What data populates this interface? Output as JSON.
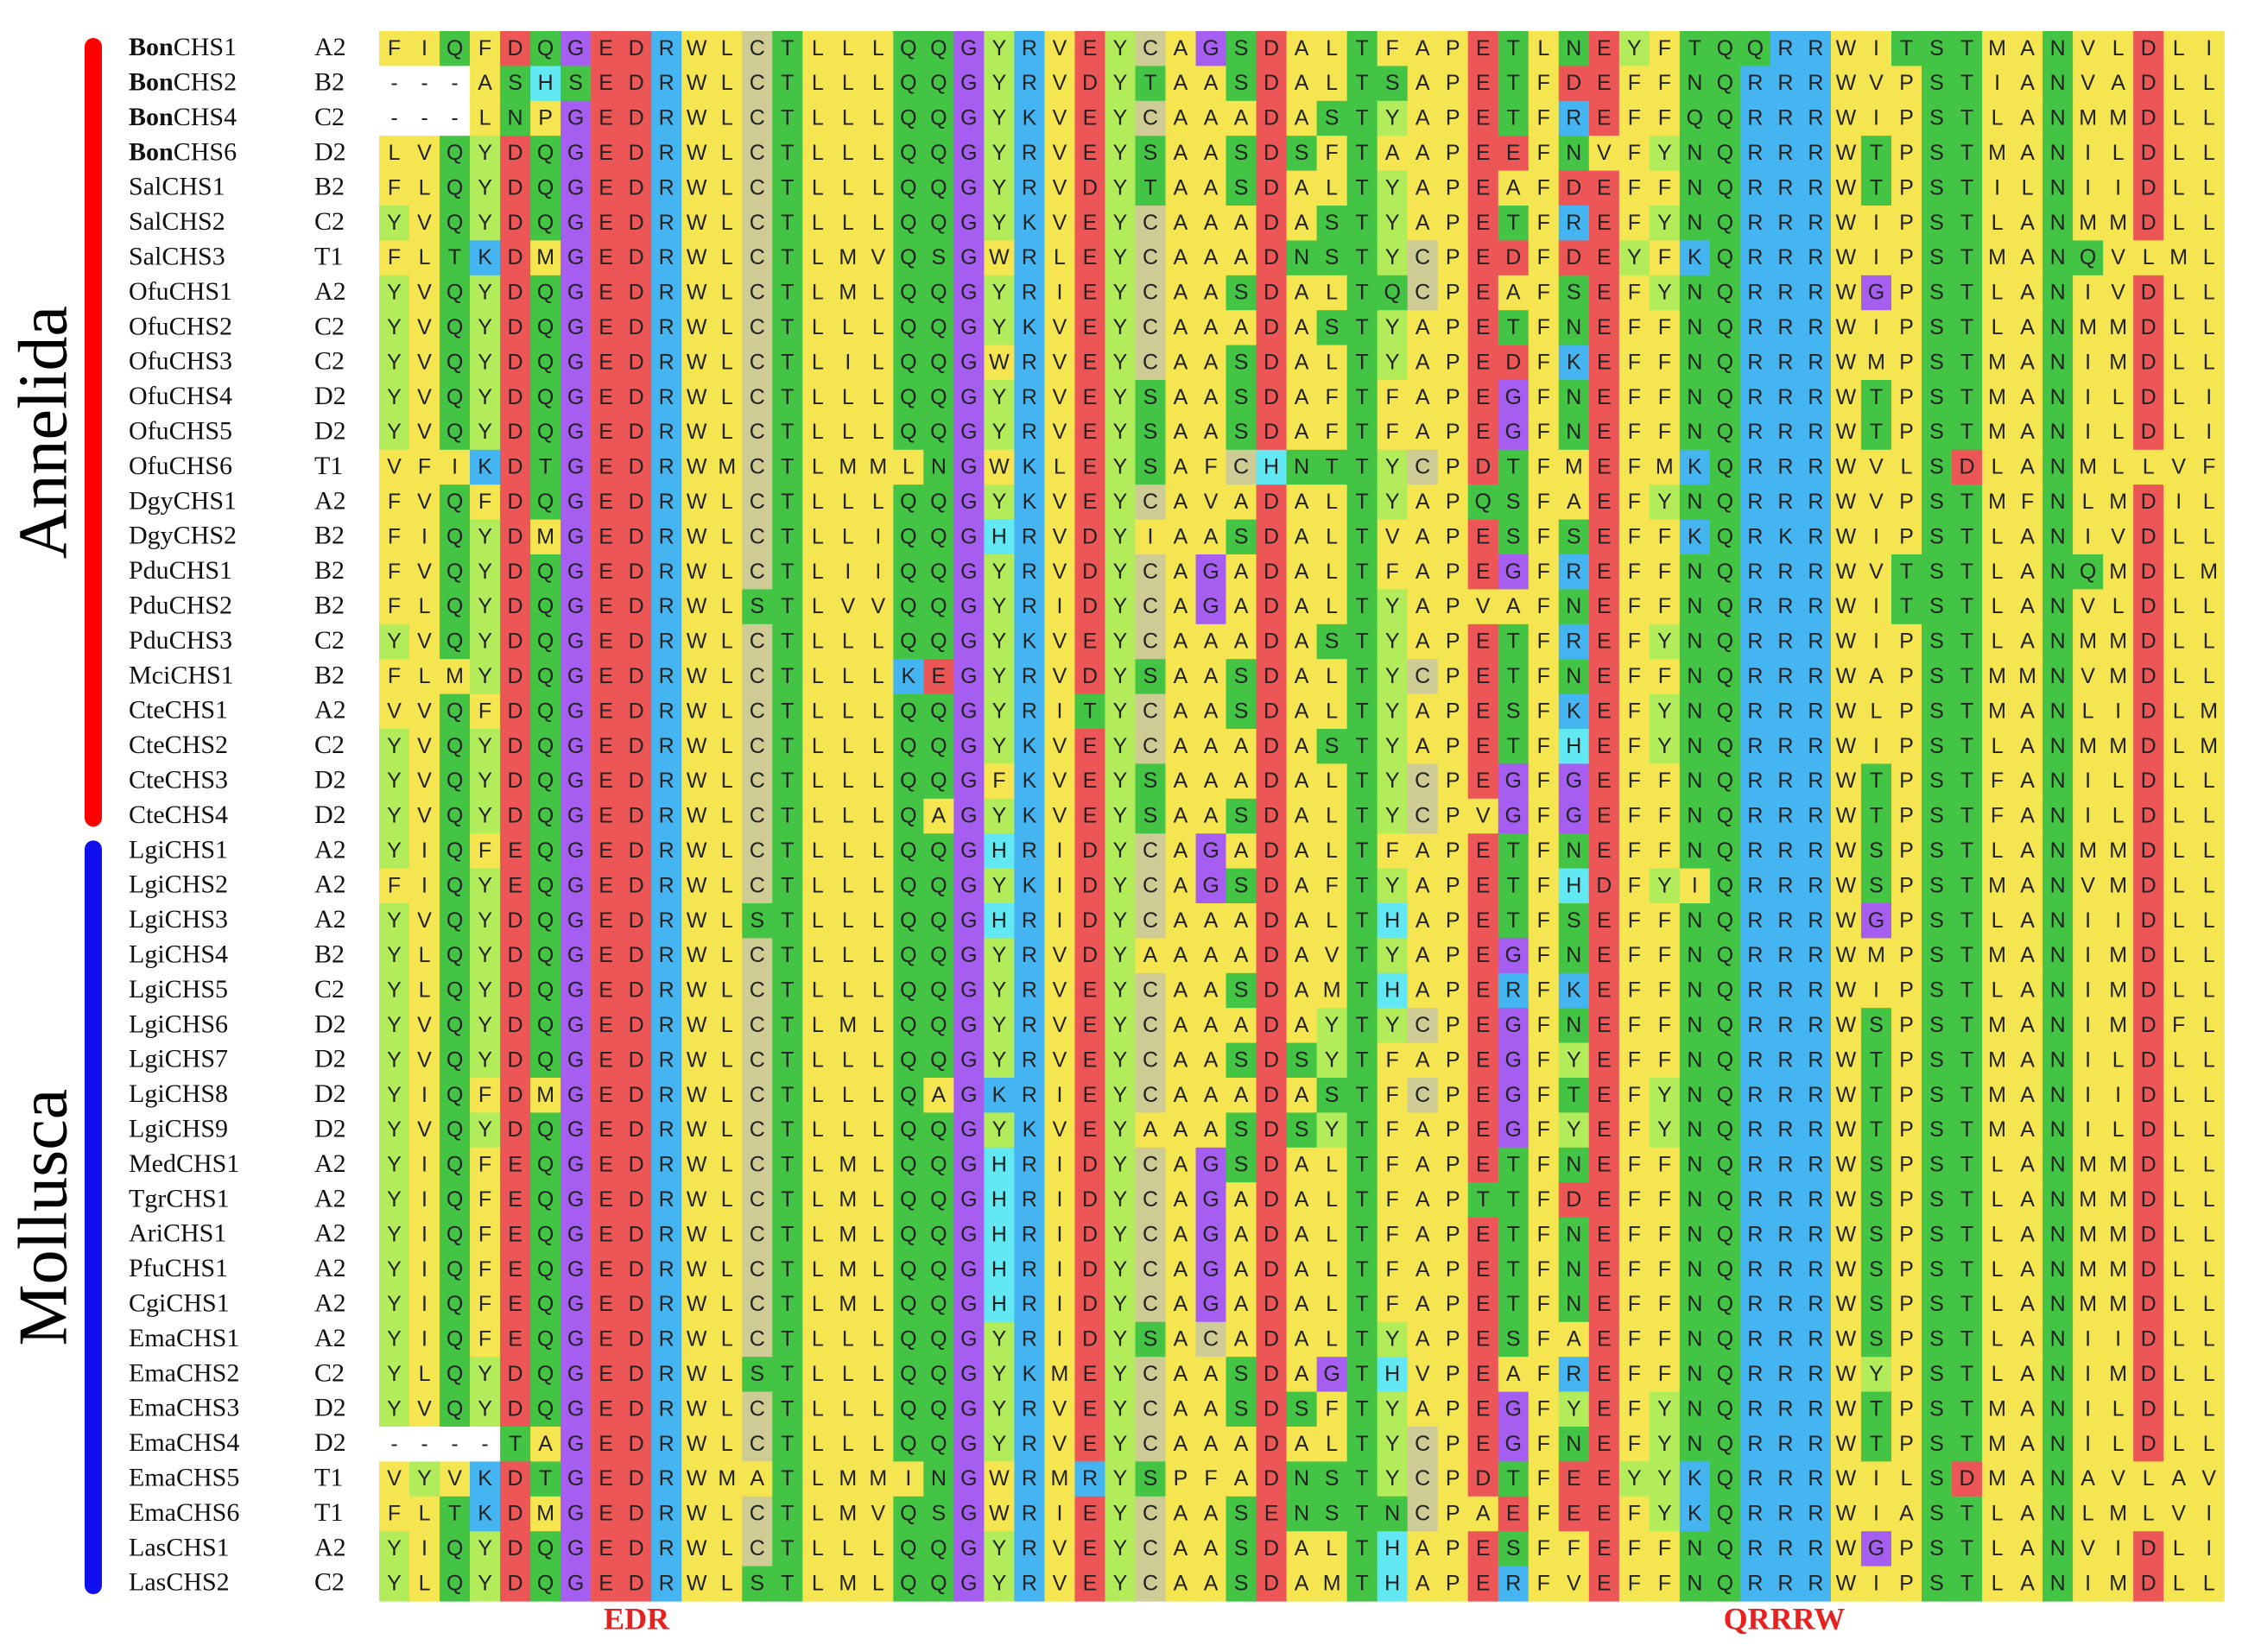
{
  "alignment": {
    "highlight_species": "Bon",
    "residue_colors": {
      "A": "#f5e550",
      "V": "#f5e550",
      "L": "#f5e550",
      "I": "#f5e550",
      "M": "#f5e550",
      "F": "#f5e550",
      "W": "#f5e550",
      "P": "#f5e550",
      "C": "#cfcb94",
      "Y": "#b2ec5a",
      "G": "#a65ef0",
      "D": "#ec5656",
      "E": "#ec5656",
      "K": "#45b5f2",
      "R": "#45b5f2",
      "N": "#44c444",
      "Q": "#44c444",
      "S": "#44c444",
      "T": "#44c444",
      "H": "#62e8f2",
      "-": "#ffffff"
    },
    "groups": [
      {
        "name": "Annelida",
        "color": "#ff0000",
        "rows": [
          {
            "name": "BonCHS1",
            "code": "A2",
            "sequence": "FIQFDQGEDRWLCTLLLQQGYRVEYCAGSDALTFAPETLNEYFTQQRRWITSTMANVLDLI"
          },
          {
            "name": "BonCHS2",
            "code": "B2",
            "sequence": "---ASHSEDRWLCTLLLQQGYRVDYTAASDALTSAPETFDEFFNQRRRWVPSTIANVADLL"
          },
          {
            "name": "BonCHS4",
            "code": "C2",
            "sequence": "---LNPGEDRWLCTLLLQQGYKVEYCAAADASTYAPETFREFFQQRRRWIPSTLANMMDLL"
          },
          {
            "name": "BonCHS6",
            "code": "D2",
            "sequence": "LVQYDQGEDRWLCTLLLQQGYRVEYSAASDSFTAAPEEFNVFYNQRRRWTPSTMANILDLL"
          },
          {
            "name": "SalCHS1",
            "code": "B2",
            "sequence": "FLQYDQGEDRWLCTLLLQQGYRVDYTAASDALTYAPEAFDEFFNQRRRWTPSTILNIIDLL"
          },
          {
            "name": "SalCHS2",
            "code": "C2",
            "sequence": "YVQYDQGEDRWLCTLLLQQGYKVEYCAAADASTYAPETFREFYNQRRRWIPSTLANMMDLL"
          },
          {
            "name": "SalCHS3",
            "code": "T1",
            "sequence": "FLTKDMGEDRWLCTLMVQSGWRLEYCAAADNSTYCPEDFDEYFKQRRRWIPSTMANQVLML"
          },
          {
            "name": "OfuCHS1",
            "code": "A2",
            "sequence": "YVQYDQGEDRWLCTLMLQQGYRIEYCAASDALTQCPEAFSEFYNQRRRWGPSTLANIVDLL"
          },
          {
            "name": "OfuCHS2",
            "code": "C2",
            "sequence": "YVQYDQGEDRWLCTLLLQQGYKVEYCAAADASTYAPETFNEFFNQRRRWIPSTLANMMDLL"
          },
          {
            "name": "OfuCHS3",
            "code": "C2",
            "sequence": "YVQYDQGEDRWLCTLILQQGWRVEYCAASDALTYAPEDFKEFFNQRRRWMPSTMANIMDLL"
          },
          {
            "name": "OfuCHS4",
            "code": "D2",
            "sequence": "YVQYDQGEDRWLCTLLLQQGYRVEYSAASDAFTFAPEGFNEFFNQRRRWTPSTMANILDLI"
          },
          {
            "name": "OfuCHS5",
            "code": "D2",
            "sequence": "YVQYDQGEDRWLCTLLLQQGYRVEYSAASDAFTFAPEGFNEFFNQRRRWTPSTMANILDLI"
          },
          {
            "name": "OfuCHS6",
            "code": "T1",
            "sequence": "VFIKDTGEDRWMCTLMMLNGWKLEYSAFCHNTTYCPDTFMEFMKQRRRWVLSDLANMLLVF"
          },
          {
            "name": "DgyCHS1",
            "code": "A2",
            "sequence": "FVQFDQGEDRWLCTLLLQQGYKVEYCAVADALTYAPQSFAEFYNQRRRWVPSTMFNLMDIL"
          },
          {
            "name": "DgyCHS2",
            "code": "B2",
            "sequence": "FIQYDMGEDRWLCTLLIQQGHRVDYIAASDALTVAPESFSEFFKQRKRWIPSTLANIVDLL"
          },
          {
            "name": "PduCHS1",
            "code": "B2",
            "sequence": "FVQYDQGEDRWLCTLIIQQGYRVDYCAGADALTFAPEGFREFFNQRRRWVTSTLANQMDLM"
          },
          {
            "name": "PduCHS2",
            "code": "B2",
            "sequence": "FLQYDQGEDRWLSTLVVQQGYRIDYCAGADALTYAPVAFNEFFNQRRRWITSTLANVLDLL"
          },
          {
            "name": "PduCHS3",
            "code": "C2",
            "sequence": "YVQYDQGEDRWLCTLLLQQGYKVEYCAAADASTYAPETFREFYNQRRRWIPSTLANMMDLL"
          },
          {
            "name": "MciCHS1",
            "code": "B2",
            "sequence": "FLMYDQGEDRWLCTLLLKEGYRVDYSAASDALTYCPETFNEFFNQRRRWAPSTMMNVMDLL"
          },
          {
            "name": "CteCHS1",
            "code": "A2",
            "sequence": "VVQFDQGEDRWLCTLLLQQGYRITYCAASDALTYAPESFKEFYNQRRRWLPSTMANLIDLM"
          },
          {
            "name": "CteCHS2",
            "code": "C2",
            "sequence": "YVQYDQGEDRWLCTLLLQQGYKVEYCAAADASTYAPETFHEFYNQRRRWIPSTLANMMDLM"
          },
          {
            "name": "CteCHS3",
            "code": "D2",
            "sequence": "YVQYDQGEDRWLCTLLLQQGFKVEYSAAADALTYCPEGFGEFFNQRRRWTPSTFANILDLL"
          },
          {
            "name": "CteCHS4",
            "code": "D2",
            "sequence": "YVQYDQGEDRWLCTLLLQAGYKVEYSAASDALTYCPVGFGEFFNQRRRWTPSTFANILDLL"
          }
        ]
      },
      {
        "name": "Mollusca",
        "color": "#1010ee",
        "rows": [
          {
            "name": "LgiCHS1",
            "code": "A2",
            "sequence": "YIQFEQGEDRWLCTLLLQQGHRIDYCAGADALTFAPETFNEFFNQRRRWSPSTLANMMDLL"
          },
          {
            "name": "LgiCHS2",
            "code": "A2",
            "sequence": "FIQYEQGEDRWLCTLLLQQGYKIDYCAGSDAFTYAPETFHDFYIQRRRWSPSTMANVMDLL"
          },
          {
            "name": "LgiCHS3",
            "code": "A2",
            "sequence": "YVQYDQGEDRWLSTLLLQQGHRIDYCAAADALTHAPETFSEFFNQRRRWGPSTLANIIDLL"
          },
          {
            "name": "LgiCHS4",
            "code": "B2",
            "sequence": "YLQYDQGEDRWLCTLLLQQGYRVDYAAAADAVTYAPEGFNEFFNQRRRWMPSTMANIMDLL"
          },
          {
            "name": "LgiCHS5",
            "code": "C2",
            "sequence": "YLQYDQGEDRWLCTLLLQQGYRVEYCAASDAMTHAPERFKEFFNQRRRWIPSTLANIMDLL"
          },
          {
            "name": "LgiCHS6",
            "code": "D2",
            "sequence": "YVQYDQGEDRWLCTLMLQQGYRVEYCAAADAYTYCPEGFNEFFNQRRRWSPSTMANIMDFL"
          },
          {
            "name": "LgiCHS7",
            "code": "D2",
            "sequence": "YVQYDQGEDRWLCTLLLQQGYRVEYCAASDSYTFAPEGFYEFFNQRRRWTPSTMANILDLL"
          },
          {
            "name": "LgiCHS8",
            "code": "D2",
            "sequence": "YIQFDMGEDRWLCTLLLQAGKRIEYCAAADASTFCPEGFTEFYNQRRRWTPSTMANIIDLL"
          },
          {
            "name": "LgiCHS9",
            "code": "D2",
            "sequence": "YVQYDQGEDRWLCTLLLQQGYKVEYAAASDSYTFAPEGFYEFYNQRRRWTPSTMANILDLL"
          },
          {
            "name": "MedCHS1",
            "code": "A2",
            "sequence": "YIQFEQGEDRWLCTLMLQQGHRIDYCAGSDALTFAPETFNEFFNQRRRWSPSTLANMMDLL"
          },
          {
            "name": "TgrCHS1",
            "code": "A2",
            "sequence": "YIQFEQGEDRWLCTLMLQQGHRIDYCAGADALTFAPTTFDEFFNQRRRWSPSTLANMMDLL"
          },
          {
            "name": "AriCHS1",
            "code": "A2",
            "sequence": "YIQFEQGEDRWLCTLMLQQGHRIDYCAGADALTFAPETFNEFFNQRRRWSPSTLANMMDLL"
          },
          {
            "name": "PfuCHS1",
            "code": "A2",
            "sequence": "YIQFEQGEDRWLCTLMLQQGHRIDYCAGADALTFAPETFNEFFNQRRRWSPSTLANMMDLL"
          },
          {
            "name": "CgiCHS1",
            "code": "A2",
            "sequence": "YIQFEQGEDRWLCTLMLQQGHRIDYCAGADALTFAPETFNEFFNQRRRWSPSTLANMMDLL"
          },
          {
            "name": "EmaCHS1",
            "code": "A2",
            "sequence": "YIQFEQGEDRWLCTLLLQQGYRIDYSACADALTYAPESFAEFFNQRRRWSPSTLANIIDLL"
          },
          {
            "name": "EmaCHS2",
            "code": "C2",
            "sequence": "YLQYDQGEDRWLSTLLLQQGYKMEYCAASDAGTHVPEAFREFFNQRRRWYPSTLANIMDLL"
          },
          {
            "name": "EmaCHS3",
            "code": "D2",
            "sequence": "YVQYDQGEDRWLCTLLLQQGYRVEYCAASDSFTYAPEGFYEFYNQRRRWTPSTMANILDLL"
          },
          {
            "name": "EmaCHS4",
            "code": "D2",
            "sequence": "----TAGEDRWLCTLLLQQGYRVEYCAAADALTYCPEGFNEFYNQRRRWTPSTMANILDLL"
          },
          {
            "name": "EmaCHS5",
            "code": "T1",
            "sequence": "VYVKDTGEDRWMATLMMINGWRMRYSPFADNSTYCPDTFEEYYKQRRRWILSDMANAVLAV"
          },
          {
            "name": "EmaCHS6",
            "code": "T1",
            "sequence": "FLTKDMGEDRWLCTLMVQSGWRIEYCAASENSTNCPAEFEEFYKQRRRWIASTLANLMLVI"
          },
          {
            "name": "LasCHS1",
            "code": "A2",
            "sequence": "YIQYDQGEDRWLCTLLLQQGYRVEYCAASDALTHAPESFFEFFNQRRRWGPSTLANVIDLI"
          },
          {
            "name": "LasCHS2",
            "code": "C2",
            "sequence": "YLQYDQGEDRWLSTLMLQQGYRVEYCAASDAMTHAPERFVEFFNQRRRWIPSTLANIMDLL"
          }
        ]
      }
    ],
    "motifs": [
      {
        "label": "EDR",
        "color": "#e82020"
      },
      {
        "label": "QRRRW",
        "color": "#e82020"
      }
    ]
  }
}
